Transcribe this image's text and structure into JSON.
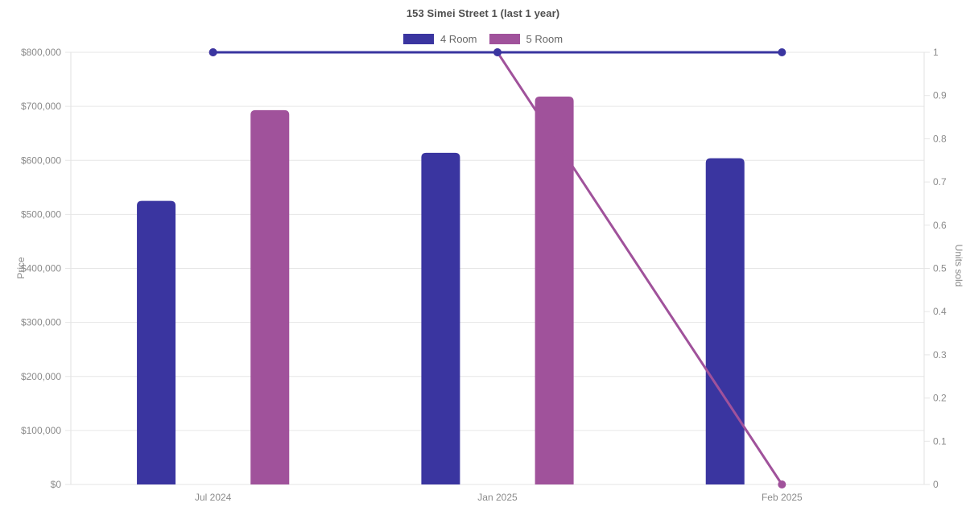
{
  "title": "153 Simei Street 1 (last 1 year)",
  "legend": {
    "items": [
      {
        "label": "4 Room",
        "color": "#3a35a0"
      },
      {
        "label": "5 Room",
        "color": "#a0529b"
      }
    ]
  },
  "chart_data": {
    "type": "bar",
    "subtype": "grouped bars (average price, left axis) with overlaid lines (units sold, right axis)",
    "title": "153 Simei Street 1 (last 1 year)",
    "categories": [
      "Jul 2024",
      "Jan 2025",
      "Feb 2025"
    ],
    "bar_series": [
      {
        "name": "4 Room",
        "color": "#3a35a0",
        "yaxis": "left",
        "values": [
          525000,
          614000,
          604000
        ]
      },
      {
        "name": "5 Room",
        "color": "#a0529b",
        "yaxis": "left",
        "values": [
          693000,
          718000,
          null
        ]
      }
    ],
    "line_series": [
      {
        "name": "4 Room",
        "color": "#3a35a0",
        "yaxis": "right",
        "values": [
          1,
          1,
          1
        ]
      },
      {
        "name": "5 Room",
        "color": "#a0529b",
        "yaxis": "right",
        "values": [
          1,
          1,
          0
        ]
      }
    ],
    "left_axis": {
      "title": "Price",
      "min": 0,
      "max": 800000,
      "step": 100000,
      "tick_labels": [
        "$0",
        "$100,000",
        "$200,000",
        "$300,000",
        "$400,000",
        "$500,000",
        "$600,000",
        "$700,000",
        "$800,000"
      ]
    },
    "right_axis": {
      "title": "Units sold",
      "min": 0,
      "max": 1,
      "step": 0.1,
      "tick_labels": [
        "0",
        "0.1",
        "0.2",
        "0.3",
        "0.4",
        "0.5",
        "0.6",
        "0.7",
        "0.8",
        "0.9",
        "1"
      ]
    },
    "grid": "horizontal gridlines at left-axis ticks",
    "legend_position": "top"
  },
  "colors": {
    "background": "#ffffff",
    "grid": "#e6e6e6",
    "axis_border": "#e2e2e2",
    "tick_text": "#8b8b8b",
    "title_text": "#4f4f4f",
    "legend_text": "#666666",
    "series_4_room": "#3a35a0",
    "series_5_room": "#a0529b"
  }
}
